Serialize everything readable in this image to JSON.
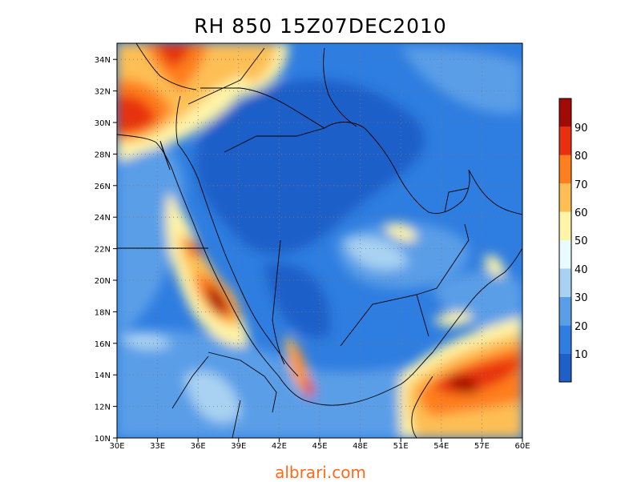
{
  "title": "RH 850 15Z07DEC2010",
  "watermark": "albrari.com",
  "map": {
    "lon_range": [
      30,
      60
    ],
    "lat_range": [
      10,
      35
    ],
    "x_ticks": [
      "30E",
      "33E",
      "36E",
      "39E",
      "42E",
      "45E",
      "48E",
      "51E",
      "54E",
      "57E",
      "60E"
    ],
    "y_ticks": [
      "10N",
      "12N",
      "14N",
      "16N",
      "18N",
      "20N",
      "22N",
      "24N",
      "26N",
      "28N",
      "30N",
      "32N",
      "34N"
    ],
    "gridlines": "dotted"
  },
  "colorbar": {
    "labels": [
      "10",
      "20",
      "30",
      "40",
      "50",
      "60",
      "70",
      "80",
      "90"
    ],
    "colors": [
      "#1f5fc8",
      "#2e7de0",
      "#5a9ee8",
      "#a9d2f2",
      "#e8fbff",
      "#fff4a8",
      "#fdbf55",
      "#ff7e1e",
      "#e8300f",
      "#a30a05"
    ]
  },
  "chart_data": {
    "type": "heatmap",
    "title": "RH 850 15Z07DEC2010",
    "variable": "RH",
    "x_range": [
      30,
      60
    ],
    "y_range": [
      10,
      35
    ],
    "levels": [
      10,
      20,
      30,
      40,
      50,
      60,
      70,
      80,
      90
    ]
  }
}
